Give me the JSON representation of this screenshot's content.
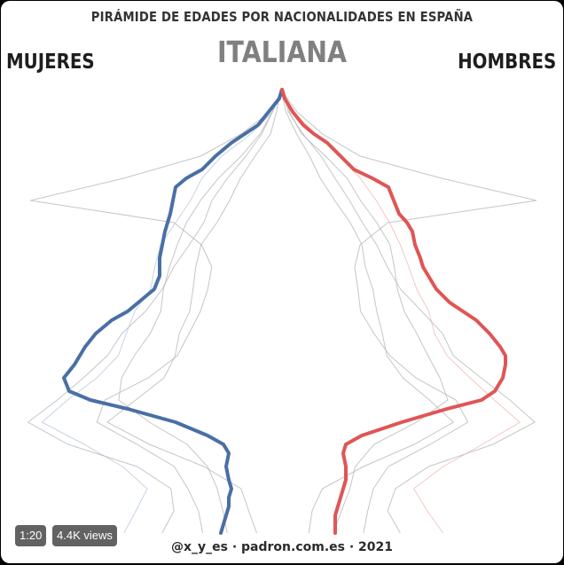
{
  "header": {
    "title": "PIRÁMIDE DE EDADES POR NACIONALIDADES EN ESPAÑA",
    "subtitle": "ITALIANA",
    "left_label": "MUJERES",
    "right_label": "HOMBRES"
  },
  "footer": {
    "credit": "@x_y_es · padron.com.es · 2021"
  },
  "video": {
    "duration": "1:20",
    "views": "4.4K views"
  },
  "colors": {
    "women": "#4a6fa5",
    "men": "#e05555",
    "ghost": "#b8b8b8"
  },
  "chart_data": {
    "type": "line",
    "title": "PIRÁMIDE DE EDADES POR NACIONALIDADES EN ESPAÑA",
    "subtitle": "ITALIANA",
    "orientation": "population pyramid (age on vertical axis, share on horizontal, women left / men right)",
    "grid": false,
    "legend": "left and right side labels",
    "age_min": 0,
    "age_max": 100,
    "share_max": 1.0,
    "series": [
      {
        "name": "MUJERES",
        "side": "left",
        "age": [
          0,
          2,
          4,
          6,
          8,
          10,
          12,
          15,
          18,
          20,
          22,
          25,
          28,
          30,
          32,
          35,
          38,
          40,
          42,
          45,
          48,
          50,
          52,
          55,
          58,
          60,
          62,
          65,
          68,
          70,
          72,
          75,
          78,
          80,
          82,
          85,
          88,
          90,
          92,
          95,
          98,
          100
        ],
        "share": [
          0.23,
          0.22,
          0.21,
          0.2,
          0.2,
          0.19,
          0.2,
          0.21,
          0.2,
          0.22,
          0.28,
          0.4,
          0.58,
          0.72,
          0.8,
          0.82,
          0.78,
          0.76,
          0.74,
          0.7,
          0.64,
          0.58,
          0.54,
          0.48,
          0.46,
          0.46,
          0.46,
          0.45,
          0.44,
          0.43,
          0.42,
          0.41,
          0.4,
          0.36,
          0.3,
          0.25,
          0.19,
          0.14,
          0.09,
          0.05,
          0.01,
          0.0
        ]
      },
      {
        "name": "HOMBRES",
        "side": "right",
        "age": [
          0,
          2,
          4,
          6,
          8,
          10,
          12,
          15,
          18,
          20,
          22,
          25,
          28,
          30,
          32,
          35,
          38,
          40,
          42,
          45,
          48,
          50,
          52,
          55,
          58,
          60,
          62,
          65,
          68,
          70,
          72,
          75,
          78,
          80,
          82,
          85,
          88,
          90,
          92,
          95,
          98,
          100
        ],
        "share": [
          0.2,
          0.2,
          0.2,
          0.21,
          0.22,
          0.23,
          0.24,
          0.24,
          0.23,
          0.24,
          0.3,
          0.45,
          0.62,
          0.75,
          0.8,
          0.83,
          0.84,
          0.84,
          0.82,
          0.78,
          0.73,
          0.68,
          0.63,
          0.58,
          0.55,
          0.53,
          0.52,
          0.5,
          0.49,
          0.47,
          0.44,
          0.42,
          0.4,
          0.34,
          0.27,
          0.22,
          0.17,
          0.12,
          0.08,
          0.04,
          0.01,
          0.0
        ]
      }
    ]
  }
}
